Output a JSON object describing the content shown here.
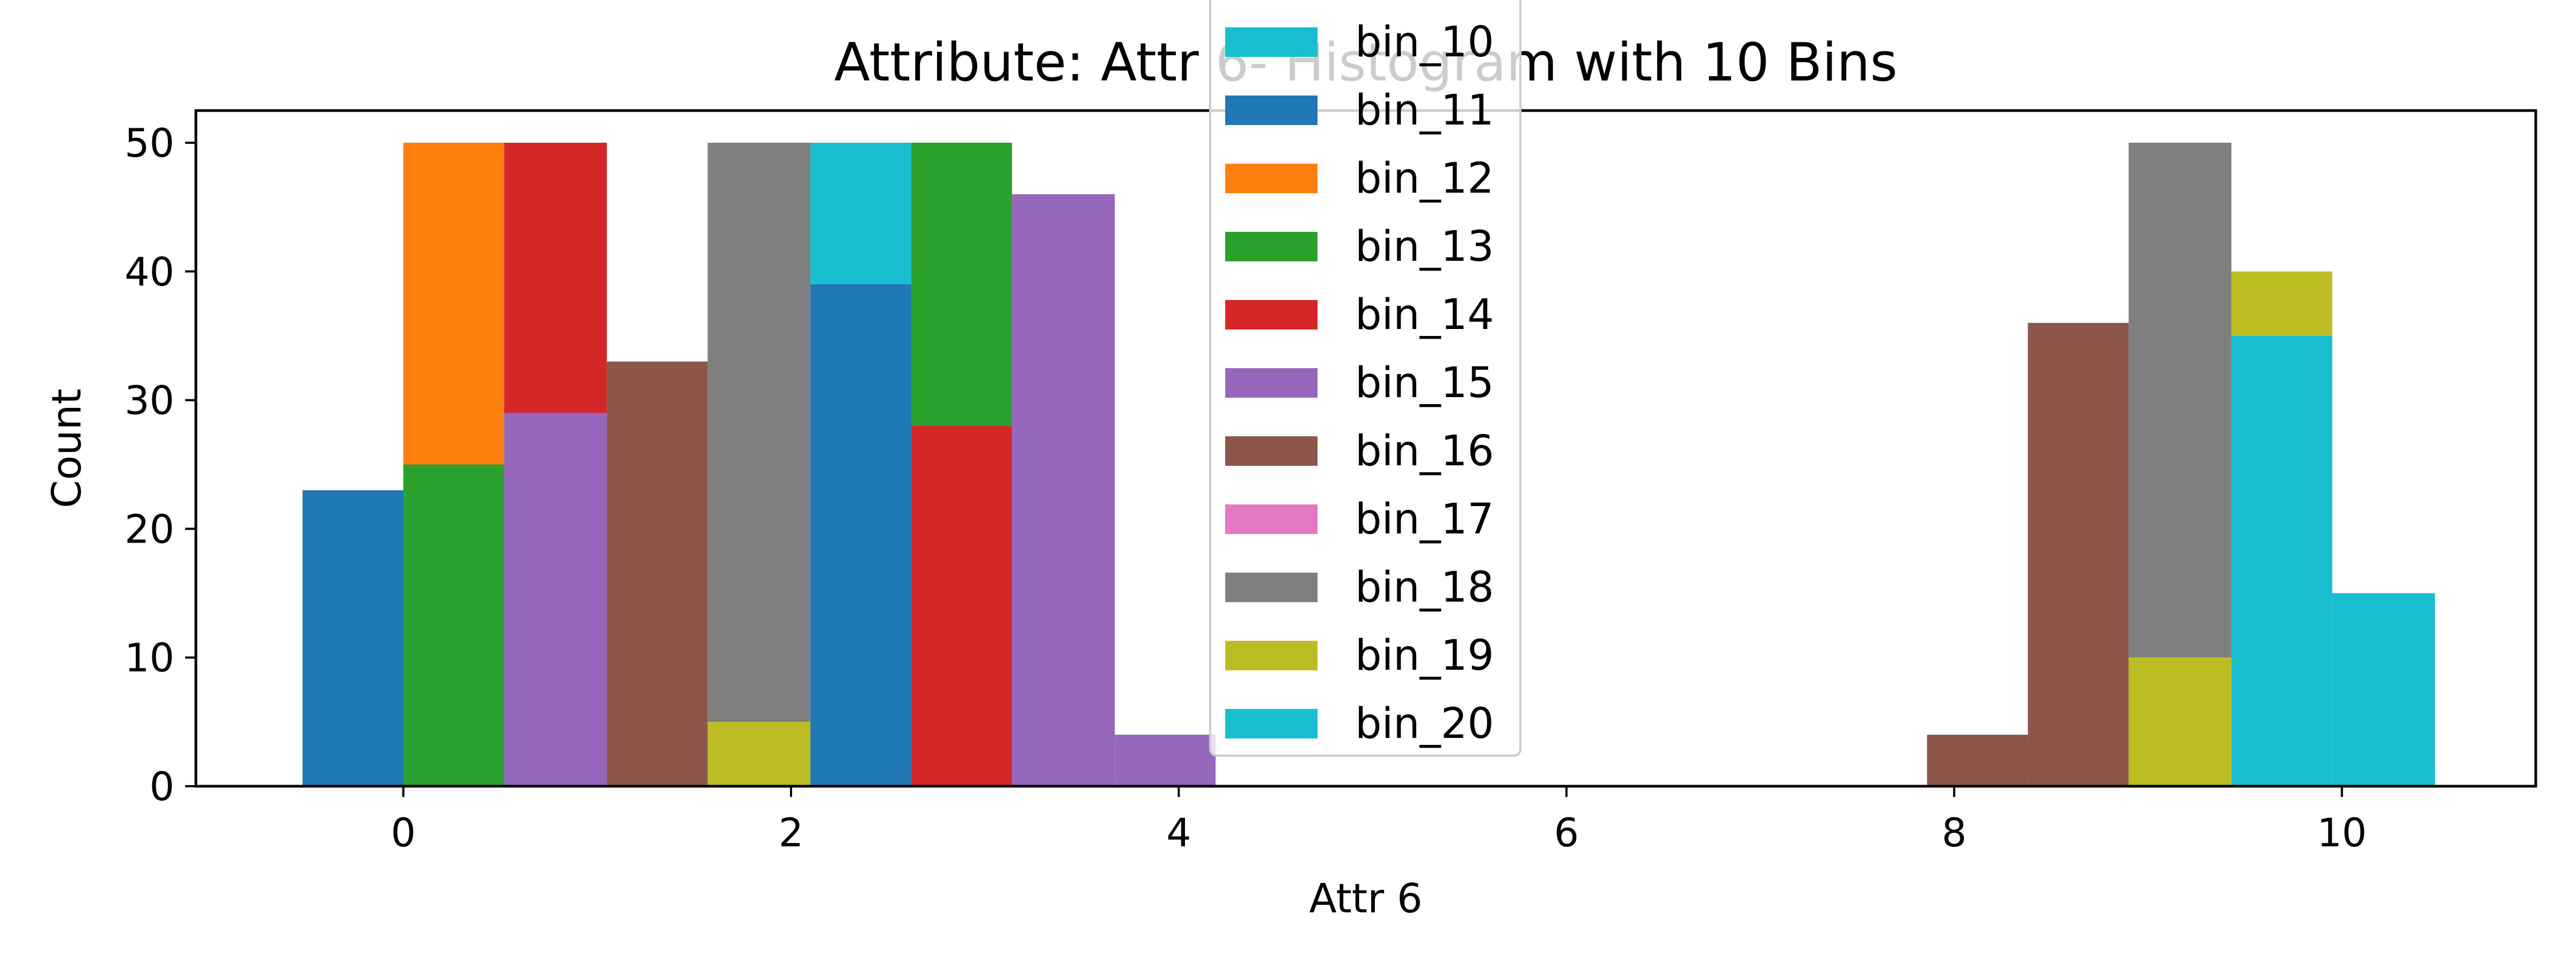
{
  "chart_data": {
    "type": "bar",
    "title": "Attribute: Attr 6- Histogram with 10 Bins",
    "xlabel": "Attr 6",
    "ylabel": "Count",
    "xlim": [
      -1.07,
      11.0
    ],
    "ylim": [
      0,
      52.5
    ],
    "x_ticks": [
      0,
      2,
      4,
      6,
      8,
      10
    ],
    "y_ticks": [
      0,
      10,
      20,
      30,
      40,
      50
    ],
    "grid": false,
    "legend_location": "top-center",
    "legend_order": [
      "bin_10",
      "bin_11",
      "bin_12",
      "bin_13",
      "bin_14",
      "bin_15",
      "bin_16",
      "bin_17",
      "bin_18",
      "bin_19",
      "bin_20"
    ],
    "series": [
      {
        "name": "bin_10",
        "color": "#17becf",
        "bars": [
          {
            "x0": 2.1,
            "x1": 2.62,
            "bottom": 39,
            "top": 50
          }
        ]
      },
      {
        "name": "bin_11",
        "color": "#1f77b4",
        "bars": [
          {
            "x0": -0.52,
            "x1": 0.0,
            "bottom": 0,
            "top": 23
          },
          {
            "x0": 2.1,
            "x1": 2.62,
            "bottom": 0,
            "top": 39
          }
        ]
      },
      {
        "name": "bin_12",
        "color": "#ff7f0e",
        "bars": [
          {
            "x0": 0.0,
            "x1": 0.52,
            "bottom": 25,
            "top": 50
          }
        ]
      },
      {
        "name": "bin_13",
        "color": "#2ca02c",
        "bars": [
          {
            "x0": 0.0,
            "x1": 0.52,
            "bottom": 0,
            "top": 25
          },
          {
            "x0": 2.62,
            "x1": 3.14,
            "bottom": 28,
            "top": 50
          }
        ]
      },
      {
        "name": "bin_14",
        "color": "#d62728",
        "bars": [
          {
            "x0": 0.52,
            "x1": 1.05,
            "bottom": 29,
            "top": 50
          },
          {
            "x0": 2.62,
            "x1": 3.14,
            "bottom": 0,
            "top": 28
          }
        ]
      },
      {
        "name": "bin_15",
        "color": "#9467bd",
        "bars": [
          {
            "x0": 0.52,
            "x1": 1.05,
            "bottom": 0,
            "top": 29
          },
          {
            "x0": 3.14,
            "x1": 3.67,
            "bottom": 0,
            "top": 46
          },
          {
            "x0": 3.67,
            "x1": 4.19,
            "bottom": 0,
            "top": 4
          }
        ]
      },
      {
        "name": "bin_16",
        "color": "#8c564b",
        "bars": [
          {
            "x0": 1.05,
            "x1": 1.57,
            "bottom": 0,
            "top": 33
          },
          {
            "x0": 7.86,
            "x1": 8.38,
            "bottom": 0,
            "top": 4
          },
          {
            "x0": 8.38,
            "x1": 8.9,
            "bottom": 0,
            "top": 36
          }
        ]
      },
      {
        "name": "bin_17",
        "color": "#e377c2",
        "bars": []
      },
      {
        "name": "bin_18",
        "color": "#7f7f7f",
        "bars": [
          {
            "x0": 1.57,
            "x1": 2.1,
            "bottom": 5,
            "top": 50
          },
          {
            "x0": 8.9,
            "x1": 9.43,
            "bottom": 10,
            "top": 50
          }
        ]
      },
      {
        "name": "bin_19",
        "color": "#bcbd22",
        "bars": [
          {
            "x0": 1.57,
            "x1": 2.1,
            "bottom": 0,
            "top": 5
          },
          {
            "x0": 8.9,
            "x1": 9.43,
            "bottom": 0,
            "top": 10
          },
          {
            "x0": 9.43,
            "x1": 9.95,
            "bottom": 35,
            "top": 40
          }
        ]
      },
      {
        "name": "bin_20",
        "color": "#17becf",
        "bars": [
          {
            "x0": 9.43,
            "x1": 9.95,
            "bottom": 0,
            "top": 35
          },
          {
            "x0": 9.95,
            "x1": 10.48,
            "bottom": 0,
            "top": 15
          }
        ]
      }
    ]
  }
}
